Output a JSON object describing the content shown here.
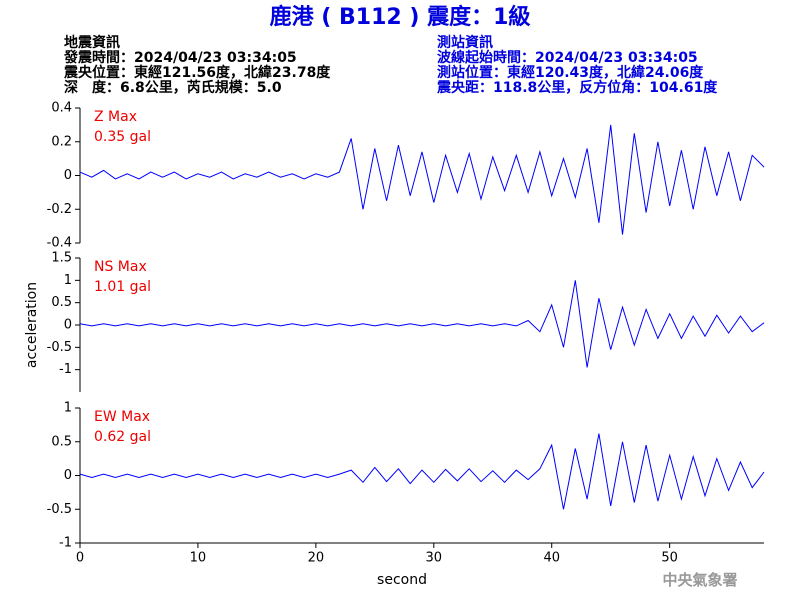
{
  "header": {
    "title": "鹿港 ( B112 ) 震度：1級",
    "left": [
      "地震資訊",
      "發震時間：2024/04/23 03:34:05",
      "震央位置：東經121.56度，北緯23.78度",
      "深　度：6.8公里，芮氏規模：5.0"
    ],
    "right": [
      "測站資訊",
      "波線起始時間：2024/04/23 03:34:05",
      "測站位置：東經120.43度，北緯24.06度",
      "震央距：118.8公里，反方位角：104.61度"
    ],
    "agency": "中央氣象署"
  },
  "chart_data": [
    {
      "type": "line",
      "annotations": [
        "Z Max",
        "0.35 gal"
      ],
      "x": [
        0,
        1,
        2,
        3,
        4,
        5,
        6,
        7,
        8,
        9,
        10,
        11,
        12,
        13,
        14,
        15,
        16,
        17,
        18,
        19,
        20,
        21,
        22,
        23,
        24,
        25,
        26,
        27,
        28,
        29,
        30,
        31,
        32,
        33,
        34,
        35,
        36,
        37,
        38,
        39,
        40,
        41,
        42,
        43,
        44,
        45,
        46,
        47,
        48,
        49,
        50,
        51,
        52,
        53,
        54,
        55,
        56,
        57,
        58
      ],
      "series": [
        {
          "name": "Z",
          "color": "#0000ff",
          "values": [
            0.02,
            -0.01,
            0.03,
            -0.02,
            0.01,
            -0.02,
            0.02,
            -0.01,
            0.02,
            -0.02,
            0.01,
            -0.01,
            0.02,
            -0.02,
            0.01,
            -0.01,
            0.02,
            -0.01,
            0.01,
            -0.02,
            0.01,
            -0.01,
            0.02,
            0.22,
            -0.2,
            0.16,
            -0.15,
            0.18,
            -0.12,
            0.14,
            -0.16,
            0.12,
            -0.1,
            0.13,
            -0.14,
            0.11,
            -0.09,
            0.12,
            -0.1,
            0.14,
            -0.12,
            0.1,
            -0.13,
            0.16,
            -0.28,
            0.3,
            -0.35,
            0.25,
            -0.22,
            0.2,
            -0.18,
            0.15,
            -0.2,
            0.17,
            -0.12,
            0.14,
            -0.15,
            0.12,
            0.05
          ]
        }
      ],
      "xlim": [
        0,
        58
      ],
      "ylim": [
        -0.4,
        0.4
      ],
      "yticks": [
        -0.4,
        -0.2,
        0,
        0.2,
        0.4
      ]
    },
    {
      "type": "line",
      "annotations": [
        "NS Max",
        "1.01 gal"
      ],
      "ylabel": "acceleration",
      "x": [
        0,
        1,
        2,
        3,
        4,
        5,
        6,
        7,
        8,
        9,
        10,
        11,
        12,
        13,
        14,
        15,
        16,
        17,
        18,
        19,
        20,
        21,
        22,
        23,
        24,
        25,
        26,
        27,
        28,
        29,
        30,
        31,
        32,
        33,
        34,
        35,
        36,
        37,
        38,
        39,
        40,
        41,
        42,
        43,
        44,
        45,
        46,
        47,
        48,
        49,
        50,
        51,
        52,
        53,
        54,
        55,
        56,
        57,
        58
      ],
      "series": [
        {
          "name": "NS",
          "color": "#0000ff",
          "values": [
            0.03,
            -0.02,
            0.03,
            -0.02,
            0.03,
            -0.02,
            0.03,
            -0.02,
            0.03,
            -0.02,
            0.03,
            -0.02,
            0.03,
            -0.02,
            0.03,
            -0.02,
            0.03,
            -0.02,
            0.03,
            -0.02,
            0.03,
            -0.02,
            0.03,
            -0.02,
            0.03,
            -0.02,
            0.03,
            -0.02,
            0.03,
            -0.02,
            0.03,
            -0.02,
            0.03,
            -0.02,
            0.03,
            -0.02,
            0.03,
            -0.02,
            0.1,
            -0.15,
            0.45,
            -0.5,
            1.0,
            -0.95,
            0.6,
            -0.55,
            0.4,
            -0.45,
            0.35,
            -0.3,
            0.25,
            -0.3,
            0.2,
            -0.25,
            0.22,
            -0.18,
            0.2,
            -0.15,
            0.05
          ]
        }
      ],
      "xlim": [
        0,
        58
      ],
      "ylim": [
        -1.5,
        1.5
      ],
      "yticks": [
        -1,
        -0.5,
        0,
        0.5,
        1,
        1.5
      ]
    },
    {
      "type": "line",
      "annotations": [
        "EW Max",
        "0.62 gal"
      ],
      "xlabel": "second",
      "x": [
        0,
        1,
        2,
        3,
        4,
        5,
        6,
        7,
        8,
        9,
        10,
        11,
        12,
        13,
        14,
        15,
        16,
        17,
        18,
        19,
        20,
        21,
        22,
        23,
        24,
        25,
        26,
        27,
        28,
        29,
        30,
        31,
        32,
        33,
        34,
        35,
        36,
        37,
        38,
        39,
        40,
        41,
        42,
        43,
        44,
        45,
        46,
        47,
        48,
        49,
        50,
        51,
        52,
        53,
        54,
        55,
        56,
        57,
        58
      ],
      "series": [
        {
          "name": "EW",
          "color": "#0000ff",
          "values": [
            0.02,
            -0.03,
            0.02,
            -0.03,
            0.02,
            -0.03,
            0.02,
            -0.03,
            0.02,
            -0.03,
            0.02,
            -0.03,
            0.02,
            -0.03,
            0.02,
            -0.03,
            0.02,
            -0.03,
            0.02,
            -0.03,
            0.02,
            -0.03,
            0.02,
            0.08,
            -0.1,
            0.12,
            -0.09,
            0.1,
            -0.12,
            0.08,
            -0.1,
            0.09,
            -0.08,
            0.1,
            -0.09,
            0.07,
            -0.1,
            0.08,
            -0.06,
            0.1,
            0.45,
            -0.5,
            0.4,
            -0.35,
            0.62,
            -0.45,
            0.5,
            -0.4,
            0.45,
            -0.38,
            0.3,
            -0.35,
            0.28,
            -0.3,
            0.25,
            -0.22,
            0.2,
            -0.18,
            0.05
          ]
        }
      ],
      "xlim": [
        0,
        58
      ],
      "ylim": [
        -1,
        1
      ],
      "yticks": [
        -1,
        -0.5,
        0,
        0.5,
        1
      ],
      "xticks": [
        0,
        10,
        20,
        30,
        40,
        50
      ]
    }
  ]
}
